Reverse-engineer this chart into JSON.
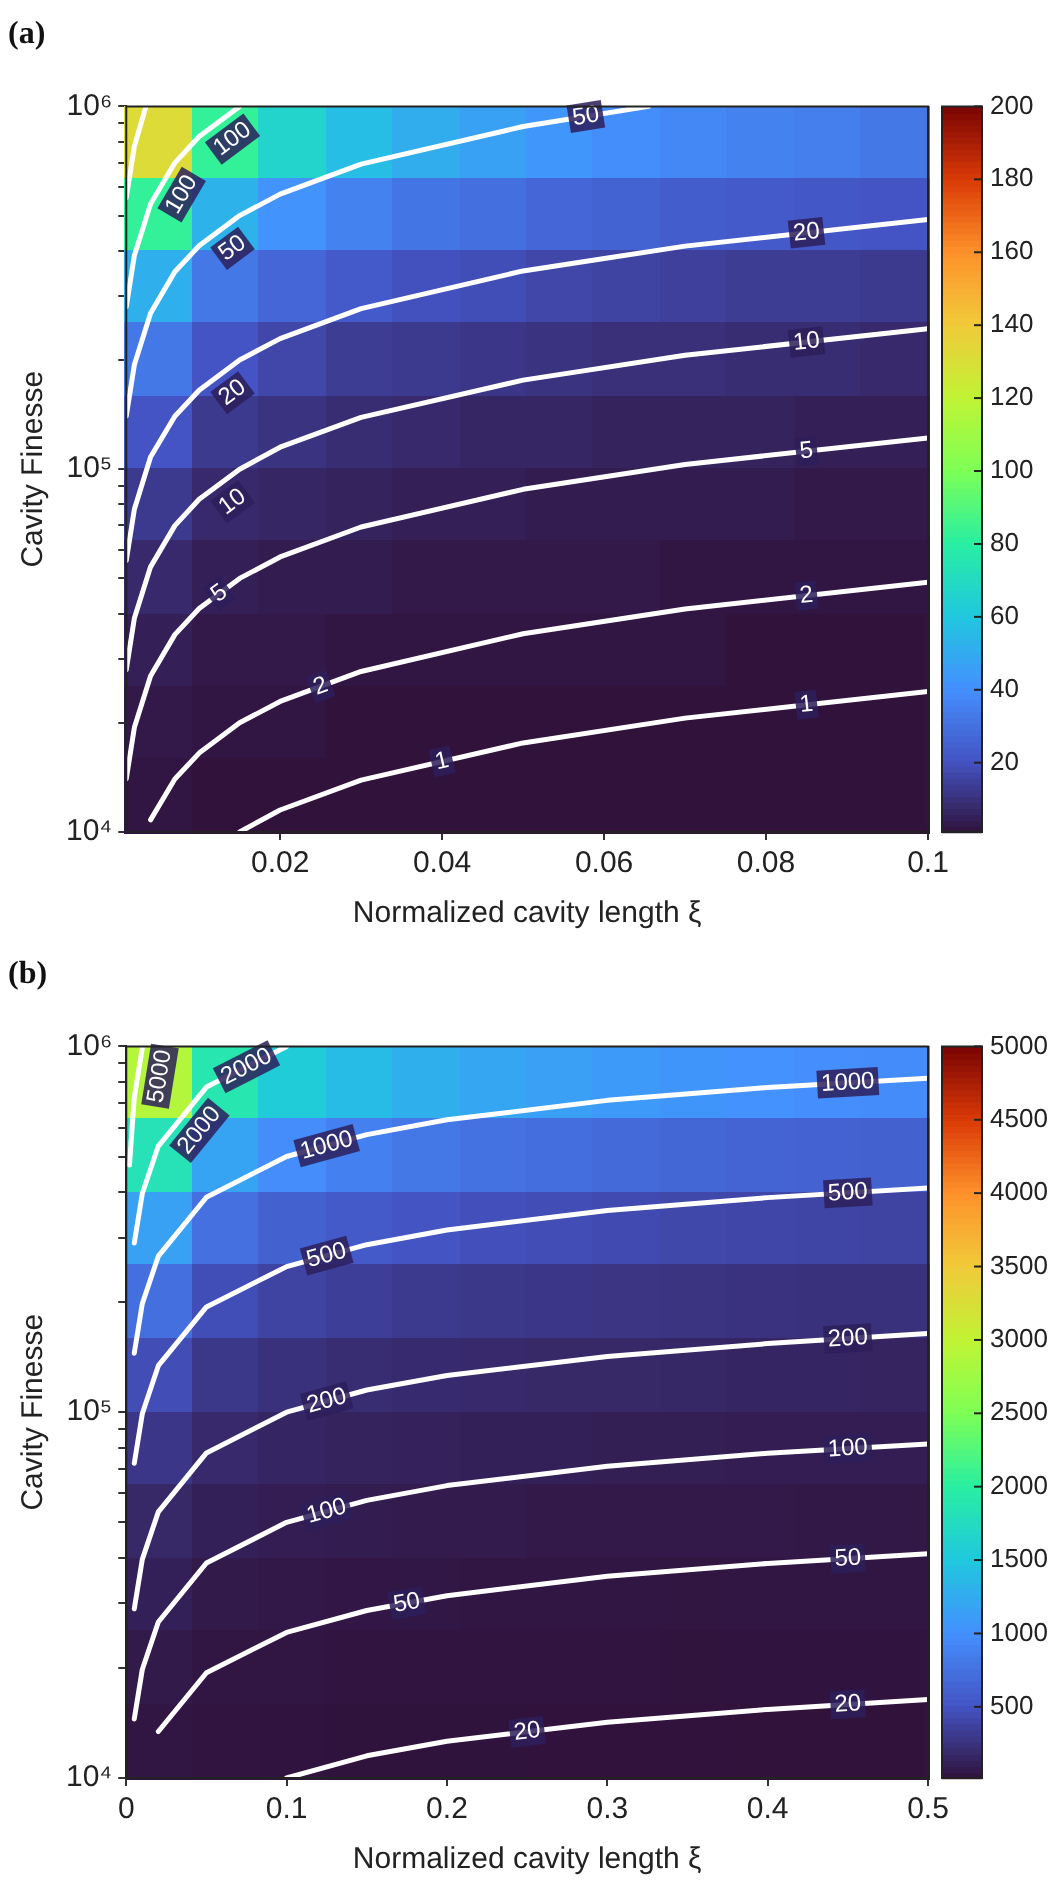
{
  "chart_data": [
    {
      "type": "heatmap",
      "title": "(a)",
      "xlabel": "Normalized cavity length ξ",
      "ylabel": "Cavity Finesse",
      "x": [
        0.0051,
        0.0134,
        0.0216,
        0.0299,
        0.0381,
        0.0464,
        0.0546,
        0.0629,
        0.0711,
        0.0794,
        0.0876,
        0.0959
      ],
      "y": [
        794000,
        501000,
        316000,
        200000,
        126000,
        79400,
        50100,
        31600,
        20000,
        12600
      ],
      "cells": [
        [
          132,
          83,
          67,
          57,
          51,
          47,
          43,
          40,
          38,
          36,
          35,
          33
        ],
        [
          83,
          53,
          42,
          36,
          32,
          30,
          27,
          26,
          24,
          23,
          22,
          21
        ],
        [
          52,
          33,
          27,
          23,
          20,
          19,
          17,
          16,
          15,
          14,
          14,
          13
        ],
        [
          33,
          21,
          17,
          14,
          13,
          12,
          11,
          10,
          10,
          9,
          9,
          8
        ],
        [
          21,
          13,
          11,
          9,
          8,
          7,
          7,
          6,
          6,
          6,
          5,
          5
        ],
        [
          13,
          8,
          7,
          6,
          5,
          5,
          4,
          4,
          4,
          4,
          3,
          3
        ],
        [
          8,
          5,
          4,
          4,
          3,
          3,
          3,
          3,
          2,
          2,
          2,
          2
        ],
        [
          5,
          3,
          3,
          2,
          2,
          2,
          2,
          2,
          2,
          1,
          1,
          1
        ],
        [
          3,
          2,
          2,
          1,
          1,
          1,
          1,
          1,
          1,
          1,
          1,
          1
        ],
        [
          2,
          1,
          1,
          1,
          1,
          1,
          1,
          1,
          1,
          1,
          1,
          1
        ]
      ],
      "clim": [
        1,
        200
      ],
      "cticks": [
        20,
        40,
        60,
        80,
        100,
        120,
        140,
        160,
        180,
        200
      ],
      "xlim": [
        0.001,
        0.1
      ],
      "xticks": [
        0.02,
        0.04,
        0.06,
        0.08,
        0.1
      ],
      "ylim": [
        10000,
        1000000
      ],
      "yticks": [
        {
          "value": 10000,
          "label": "10⁴"
        },
        {
          "value": 20000,
          "label": null
        },
        {
          "value": 30000,
          "label": null
        },
        {
          "value": 40000,
          "label": null
        },
        {
          "value": 50000,
          "label": null
        },
        {
          "value": 60000,
          "label": null
        },
        {
          "value": 70000,
          "label": null
        },
        {
          "value": 80000,
          "label": null
        },
        {
          "value": 90000,
          "label": null
        },
        {
          "value": 100000,
          "label": "10⁵"
        },
        {
          "value": 200000,
          "label": null
        },
        {
          "value": 300000,
          "label": null
        },
        {
          "value": 400000,
          "label": null
        },
        {
          "value": 500000,
          "label": null
        },
        {
          "value": 600000,
          "label": null
        },
        {
          "value": 700000,
          "label": null
        },
        {
          "value": 800000,
          "label": null
        },
        {
          "value": 900000,
          "label": null
        },
        {
          "value": 1000000,
          "label": "10⁶"
        }
      ],
      "log": "y",
      "series": [
        {
          "type": "line",
          "name": "1",
          "color": "#ffffff",
          "x": [
            0.015,
            0.02,
            0.03,
            0.05,
            0.07,
            0.1
          ],
          "values": [
            10000,
            11500,
            13900,
            17600,
            20600,
            24400
          ]
        },
        {
          "type": "line",
          "name": "2",
          "color": "#ffffff",
          "x": [
            0.004,
            0.007,
            0.01,
            0.015,
            0.02,
            0.03,
            0.05,
            0.07,
            0.1
          ],
          "values": [
            10800,
            14000,
            16500,
            20000,
            22900,
            27700,
            35200,
            41200,
            48800
          ]
        },
        {
          "type": "line",
          "name": "5",
          "color": "#ffffff",
          "x": [
            0.001,
            0.002,
            0.004,
            0.007,
            0.01,
            0.015,
            0.02,
            0.03,
            0.05,
            0.07,
            0.1
          ],
          "values": [
            14000,
            19400,
            26900,
            35000,
            41300,
            50000,
            57300,
            69300,
            88000,
            103000,
            122000
          ]
        },
        {
          "type": "line",
          "name": "10",
          "color": "#ffffff",
          "x": [
            0.001,
            0.002,
            0.004,
            0.007,
            0.01,
            0.015,
            0.02,
            0.03,
            0.05,
            0.07,
            0.1
          ],
          "values": [
            28000,
            38800,
            53800,
            69900,
            82600,
            100000,
            115000,
            139000,
            176000,
            206000,
            244000
          ]
        },
        {
          "type": "line",
          "name": "20",
          "color": "#ffffff",
          "x": [
            0.001,
            0.002,
            0.004,
            0.007,
            0.01,
            0.015,
            0.02,
            0.03,
            0.05,
            0.07,
            0.1
          ],
          "values": [
            56000,
            77500,
            108000,
            140000,
            165000,
            200000,
            229000,
            277000,
            352000,
            412000,
            488000
          ]
        },
        {
          "type": "line",
          "name": "50",
          "color": "#ffffff",
          "x": [
            0.001,
            0.002,
            0.004,
            0.007,
            0.01,
            0.015,
            0.02,
            0.03,
            0.05,
            0.0655
          ],
          "values": [
            140000,
            194000,
            269000,
            350000,
            413000,
            500000,
            573000,
            693000,
            880000,
            1000000
          ]
        },
        {
          "type": "line",
          "name": "100",
          "color": "#ffffff",
          "x": [
            0.001,
            0.002,
            0.004,
            0.007,
            0.01,
            0.015
          ],
          "values": [
            280000,
            388000,
            538000,
            699000,
            826000,
            1000000
          ]
        },
        {
          "type": "line",
          "color": "#ffffff",
          "x": [
            0.001,
            0.002,
            0.00343
          ],
          "values": [
            560000,
            775000,
            1000000
          ]
        }
      ]
    },
    {
      "type": "heatmap",
      "title": "(b)",
      "xlabel": "Normalized cavity length ξ",
      "ylabel": "Cavity Finesse",
      "x": [
        0.0208,
        0.0625,
        0.1042,
        0.1458,
        0.1875,
        0.2292,
        0.2708,
        0.3125,
        0.3542,
        0.3958,
        0.4375,
        0.4792
      ],
      "y": [
        794000,
        501000,
        316000,
        200000,
        126000,
        79400,
        50100,
        31600,
        20000,
        12600
      ],
      "cells": [
        [
          2900,
          1900,
          1560,
          1400,
          1290,
          1210,
          1150,
          1100,
          1060,
          1030,
          1000,
          980
        ],
        [
          1840,
          1190,
          990,
          880,
          810,
          760,
          730,
          700,
          670,
          650,
          630,
          620
        ],
        [
          1160,
          750,
          620,
          560,
          510,
          480,
          460,
          440,
          420,
          410,
          400,
          390
        ],
        [
          740,
          470,
          390,
          350,
          320,
          300,
          290,
          280,
          270,
          260,
          250,
          250
        ],
        [
          460,
          300,
          250,
          220,
          200,
          190,
          180,
          180,
          170,
          160,
          160,
          150
        ],
        [
          290,
          190,
          160,
          140,
          130,
          120,
          120,
          110,
          110,
          100,
          100,
          100
        ],
        [
          180,
          120,
          100,
          90,
          80,
          80,
          70,
          70,
          70,
          70,
          60,
          60
        ],
        [
          120,
          75,
          62,
          56,
          51,
          48,
          46,
          44,
          42,
          41,
          40,
          39
        ],
        [
          74,
          47,
          39,
          35,
          32,
          30,
          29,
          28,
          27,
          26,
          25,
          25
        ],
        [
          46,
          30,
          25,
          22,
          20,
          19,
          18,
          18,
          17,
          16,
          16,
          15
        ]
      ],
      "clim": [
        15,
        5000
      ],
      "cticks": [
        500,
        1000,
        1500,
        2000,
        2500,
        3000,
        3500,
        4000,
        4500,
        5000
      ],
      "xlim": [
        0,
        0.5
      ],
      "xticks": [
        0,
        0.1,
        0.2,
        0.3,
        0.4,
        0.5
      ],
      "ylim": [
        10000,
        1000000
      ],
      "yticks": [
        {
          "value": 10000,
          "label": "10⁴"
        },
        {
          "value": 20000,
          "label": null
        },
        {
          "value": 30000,
          "label": null
        },
        {
          "value": 40000,
          "label": null
        },
        {
          "value": 50000,
          "label": null
        },
        {
          "value": 60000,
          "label": null
        },
        {
          "value": 70000,
          "label": null
        },
        {
          "value": 80000,
          "label": null
        },
        {
          "value": 90000,
          "label": null
        },
        {
          "value": 100000,
          "label": "10⁵"
        },
        {
          "value": 200000,
          "label": null
        },
        {
          "value": 300000,
          "label": null
        },
        {
          "value": 400000,
          "label": null
        },
        {
          "value": 500000,
          "label": null
        },
        {
          "value": 600000,
          "label": null
        },
        {
          "value": 700000,
          "label": null
        },
        {
          "value": 800000,
          "label": null
        },
        {
          "value": 900000,
          "label": null
        },
        {
          "value": 1000000,
          "label": "10⁶"
        }
      ],
      "log": "y",
      "series": [
        {
          "type": "line",
          "name": "20",
          "color": "#ffffff",
          "x": [
            0.1,
            0.15,
            0.2,
            0.3,
            0.4,
            0.5
          ],
          "values": [
            10000,
            11500,
            12600,
            14200,
            15400,
            16400
          ]
        },
        {
          "type": "line",
          "name": "50",
          "color": "#ffffff",
          "x": [
            0.02,
            0.05,
            0.1,
            0.15,
            0.2,
            0.3,
            0.4,
            0.5
          ],
          "values": [
            13400,
            19400,
            25000,
            28700,
            31500,
            35600,
            38600,
            41000
          ]
        },
        {
          "type": "line",
          "name": "100",
          "color": "#ffffff",
          "x": [
            0.005,
            0.01,
            0.02,
            0.05,
            0.1,
            0.15,
            0.2,
            0.3,
            0.4,
            0.5
          ],
          "values": [
            14500,
            19800,
            26700,
            38700,
            50000,
            57400,
            63000,
            71200,
            77200,
            81900
          ]
        },
        {
          "type": "line",
          "name": "200",
          "color": "#ffffff",
          "x": [
            0.005,
            0.01,
            0.02,
            0.05,
            0.1,
            0.15,
            0.2,
            0.3,
            0.4,
            0.5
          ],
          "values": [
            29000,
            39600,
            53400,
            77400,
            100000,
            115000,
            126000,
            142000,
            154000,
            164000
          ]
        },
        {
          "type": "line",
          "name": "500",
          "color": "#ffffff",
          "x": [
            0.005,
            0.01,
            0.02,
            0.05,
            0.1,
            0.15,
            0.2,
            0.3,
            0.4,
            0.5
          ],
          "values": [
            72500,
            99000,
            134000,
            194000,
            250000,
            287000,
            315000,
            356000,
            386000,
            410000
          ]
        },
        {
          "type": "line",
          "name": "1000",
          "color": "#ffffff",
          "x": [
            0.005,
            0.01,
            0.02,
            0.05,
            0.1,
            0.15,
            0.2,
            0.3,
            0.4,
            0.5
          ],
          "values": [
            145000,
            198000,
            267000,
            387000,
            500000,
            574000,
            630000,
            712000,
            772000,
            819000
          ]
        },
        {
          "type": "line",
          "name": "2000",
          "color": "#ffffff",
          "x": [
            0.005,
            0.01,
            0.02,
            0.05,
            0.1
          ],
          "values": [
            290000,
            396000,
            534000,
            774000,
            1000000
          ]
        },
        {
          "type": "line",
          "name": "5000",
          "color": "#ffffff",
          "x": [
            0.002,
            0.005,
            0.01
          ],
          "values": [
            474000,
            725000,
            990000
          ]
        }
      ]
    }
  ]
}
